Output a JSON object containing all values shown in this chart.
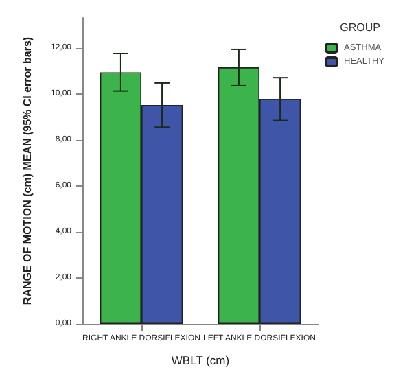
{
  "chart_data": {
    "type": "bar",
    "xlabel": "WBLT (cm)",
    "ylabel": "RANGE OF MOTION (cm) MEAN (95% CI error bars)",
    "legend_title": "GROUP",
    "categories": [
      "RIGHT ANKLE DORSIFLEXION",
      "LEFT ANKLE DORSIFLEXION"
    ],
    "series": [
      {
        "name": "ASTHMA",
        "color": "#3cb44b",
        "values": [
          10.93,
          11.15
        ],
        "errors": [
          [
            10.12,
            11.75
          ],
          [
            10.35,
            11.93
          ]
        ]
      },
      {
        "name": "HEALTHY",
        "color": "#3f55a8",
        "values": [
          9.51,
          9.78
        ],
        "errors": [
          [
            8.55,
            10.47
          ],
          [
            8.84,
            10.7
          ]
        ]
      }
    ],
    "ylim": [
      0,
      13.3
    ],
    "yticks": [
      {
        "value": 0,
        "label": "0,00"
      },
      {
        "value": 2,
        "label": "2,00"
      },
      {
        "value": 4,
        "label": "4,00"
      },
      {
        "value": 6,
        "label": "6,00"
      },
      {
        "value": 8,
        "label": "8,00"
      },
      {
        "value": 10,
        "label": "10,00"
      },
      {
        "value": 12,
        "label": "12,00"
      }
    ],
    "grid": false,
    "legend": "top right"
  }
}
